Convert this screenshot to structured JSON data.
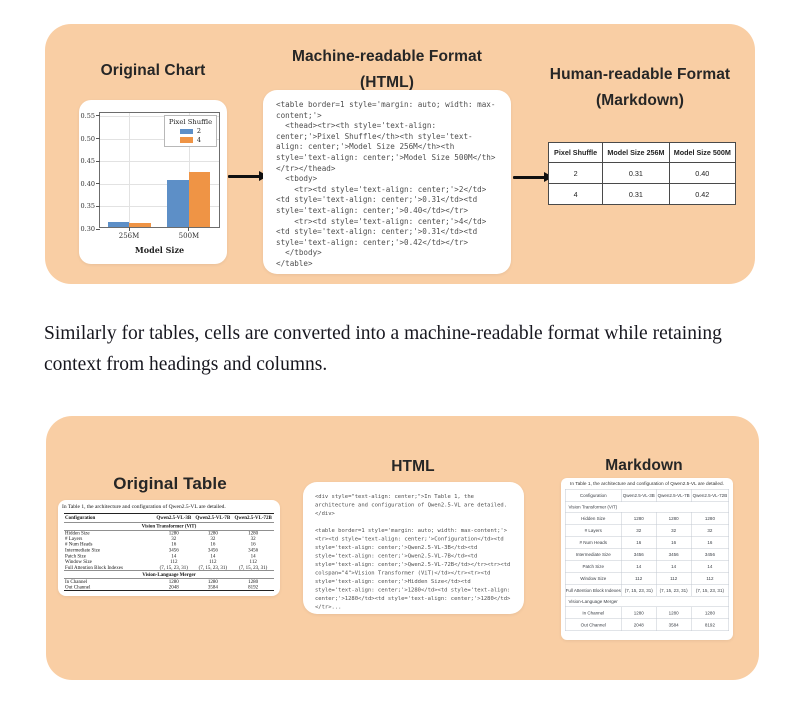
{
  "colors": {
    "panel_bg": "#f9cea4",
    "card_bg": "#ffffff",
    "heading_text": "#262626",
    "code_text": "#4e4e4e",
    "arrow": "#101010",
    "bar_blue": "#5d8fc7",
    "bar_orange": "#ef9445"
  },
  "top_panel": {
    "chart_section": {
      "title": "Original Chart"
    },
    "html_section": {
      "title": "Machine-readable Format",
      "subtitle": "(HTML)",
      "code_lines": [
        "<table border=1 style='margin: auto; width: max-",
        "content;'>",
        "  <thead><tr><th style='text-align:",
        "center;'>Pixel Shuffle</th><th style='text-",
        "align: center;'>Model Size 256M</th><th",
        "style='text-align: center;'>Model Size 500M</th>",
        "</tr></thead>",
        "  <tbody>",
        "    <tr><td style='text-align: center;'>2</td>",
        "<td style='text-align: center;'>0.31</td><td",
        "style='text-align: center;'>0.40</td></tr>",
        "    <tr><td style='text-align: center;'>4</td>",
        "<td style='text-align: center;'>0.31</td><td",
        "style='text-align: center;'>0.42</td></tr>",
        "  </tbody>",
        "</table>"
      ]
    },
    "markdown_section": {
      "title": "Human-readable Format",
      "subtitle": "(Markdown)",
      "table": {
        "headers": [
          "Pixel Shuffle",
          "Model Size 256M",
          "Model Size 500M"
        ],
        "rows": [
          [
            "2",
            "0.31",
            "0.40"
          ],
          [
            "4",
            "0.31",
            "0.42"
          ]
        ]
      }
    }
  },
  "chart_data": {
    "type": "bar",
    "title": "",
    "xlabel": "Model Size",
    "ylabel": "",
    "categories": [
      "256M",
      "500M"
    ],
    "series": [
      {
        "name": "2",
        "color": "#5d8fc7",
        "values": [
          0.312,
          0.403
        ]
      },
      {
        "name": "4",
        "color": "#ef9445",
        "values": [
          0.309,
          0.421
        ]
      }
    ],
    "legend_title": "Pixel Shuffle",
    "legend_position": "upper right",
    "ylim": [
      0.3,
      0.55
    ],
    "yticks": [
      0.3,
      0.35,
      0.4,
      0.45,
      0.5,
      0.55
    ],
    "grid": true
  },
  "paragraph": "Similarly for tables, cells are converted into a machine-readable format while retaining context from headings and columns.",
  "bottom_panel": {
    "original_section": {
      "title": "Original Table",
      "caption": "In Table 1, the architecture and configuration of Qwen2.5-VL are detailed.",
      "table": {
        "headers": [
          "Configuration",
          "Qwen2.5-VL-3B",
          "Qwen2.5-VL-7B",
          "Qwen2.5-VL-72B"
        ],
        "sections": [
          {
            "name": "Vision Transformer (ViT)",
            "rows": [
              [
                "Hidden Size",
                "1280",
                "1280",
                "1280"
              ],
              [
                "# Layers",
                "32",
                "32",
                "32"
              ],
              [
                "# Num Heads",
                "16",
                "16",
                "16"
              ],
              [
                "Intermediate Size",
                "3456",
                "3456",
                "3456"
              ],
              [
                "Patch Size",
                "14",
                "14",
                "14"
              ],
              [
                "Window Size",
                "112",
                "112",
                "112"
              ],
              [
                "Full Attention Block Indexes",
                "(7, 15, 23, 31)",
                "(7, 15, 23, 31)",
                "(7, 15, 23, 31)"
              ]
            ]
          },
          {
            "name": "Vision-Language Merger",
            "rows": [
              [
                "In Channel",
                "1280",
                "1280",
                "1280"
              ],
              [
                "Out Channel",
                "2048",
                "3584",
                "8192"
              ]
            ]
          }
        ]
      }
    },
    "html_section": {
      "title": "HTML",
      "code_lines": [
        "<div style=\"text-align: center;\">In Table 1, the",
        "architecture and configuration of Qwen2.5-VL are detailed.",
        "</div>",
        "",
        "<table border=1 style='margin: auto; width: max-content;'>",
        "<tr><td style='text-align: center;'>Configuration</td><td",
        "style='text-align: center;'>Qwen2.5-VL-3B</td><td",
        "style='text-align: center;'>Qwen2.5-VL-7B</td><td",
        "style='text-align: center;'>Qwen2.5-VL-72B</td></tr><tr><td",
        "colspan=\"4\">Vision Transformer (ViT)</td></tr><tr><td",
        "style='text-align: center;'>Hidden Size</td><td",
        "style='text-align: center;'>1280</td><td style='text-align:",
        "center;'>1280</td><td style='text-align: center;'>1280</td>",
        "</tr>..."
      ]
    },
    "markdown_section": {
      "title": "Markdown",
      "caption": "In Table 1, the architecture and configuration of Qwen2.5-VL are detailed.",
      "table": {
        "headers": [
          "Configuration",
          "Qwen2.5-VL-3B",
          "Qwen2.5-VL-7B",
          "Qwen2.5-VL-72B"
        ],
        "sections": [
          {
            "name": "Vision Transformer (ViT)",
            "rows": [
              [
                "Hidden Size",
                "1280",
                "1280",
                "1280"
              ],
              [
                "# Layers",
                "32",
                "32",
                "32"
              ],
              [
                "# Num Heads",
                "16",
                "16",
                "16"
              ],
              [
                "Intermediate Size",
                "3456",
                "3456",
                "3456"
              ],
              [
                "Patch Size",
                "14",
                "14",
                "14"
              ],
              [
                "Window Size",
                "112",
                "112",
                "112"
              ],
              [
                "Full Attention Block Indexes",
                "(7, 15, 23, 31)",
                "(7, 15, 23, 31)",
                "(7, 15, 23, 31)"
              ]
            ]
          },
          {
            "name": "Vision-Language Merger",
            "rows": [
              [
                "In Channel",
                "1280",
                "1280",
                "1280"
              ],
              [
                "Out Channel",
                "2048",
                "3584",
                "8192"
              ]
            ]
          }
        ]
      }
    }
  }
}
